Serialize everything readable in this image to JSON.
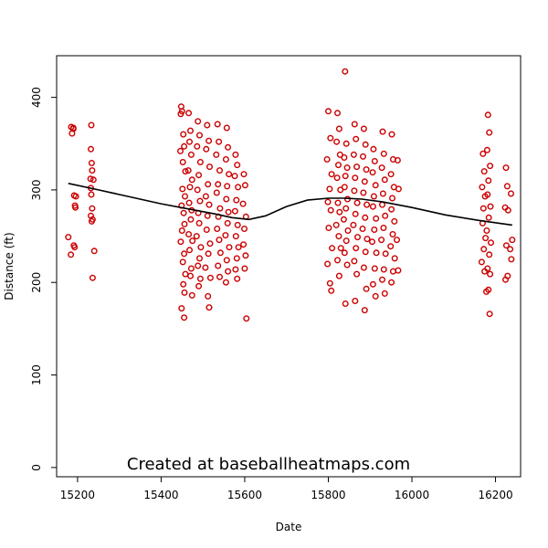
{
  "chart_data": {
    "type": "scatter",
    "title": "",
    "xlabel": "Date",
    "ylabel": "Distance (ft)",
    "watermark": "Created at baseballheatmaps.com",
    "xlim": [
      15150,
      16260
    ],
    "ylim": [
      -10,
      445
    ],
    "xticks": [
      15200,
      15400,
      15600,
      15800,
      16000,
      16200
    ],
    "yticks": [
      0,
      100,
      200,
      300,
      400
    ],
    "grid": false,
    "legend": "none",
    "colors": {
      "points": "#cc0000",
      "trend": "#000000",
      "axis": "#000000"
    },
    "points": [
      [
        15178,
        249
      ],
      [
        15185,
        368
      ],
      [
        15187,
        361
      ],
      [
        15190,
        366
      ],
      [
        15191,
        240
      ],
      [
        15192,
        294
      ],
      [
        15194,
        283
      ],
      [
        15184,
        230
      ],
      [
        15190,
        367
      ],
      [
        15193,
        238
      ],
      [
        15195,
        281
      ],
      [
        15196,
        293
      ],
      [
        15233,
        370
      ],
      [
        15232,
        344
      ],
      [
        15234,
        329
      ],
      [
        15235,
        321
      ],
      [
        15231,
        312
      ],
      [
        15232,
        302
      ],
      [
        15233,
        295
      ],
      [
        15235,
        280
      ],
      [
        15232,
        272
      ],
      [
        15236,
        268
      ],
      [
        15234,
        266
      ],
      [
        15240,
        234
      ],
      [
        15236,
        205
      ],
      [
        15238,
        311
      ],
      [
        15448,
        390
      ],
      [
        15450,
        385
      ],
      [
        15447,
        382
      ],
      [
        15453,
        360
      ],
      [
        15455,
        347
      ],
      [
        15446,
        342
      ],
      [
        15452,
        330
      ],
      [
        15458,
        320
      ],
      [
        15451,
        301
      ],
      [
        15457,
        293
      ],
      [
        15449,
        283
      ],
      [
        15454,
        275
      ],
      [
        15456,
        263
      ],
      [
        15450,
        256
      ],
      [
        15447,
        244
      ],
      [
        15455,
        231
      ],
      [
        15452,
        222
      ],
      [
        15458,
        209
      ],
      [
        15453,
        198
      ],
      [
        15456,
        189
      ],
      [
        15449,
        172
      ],
      [
        15455,
        162
      ],
      [
        15466,
        383
      ],
      [
        15470,
        364
      ],
      [
        15468,
        352
      ],
      [
        15472,
        338
      ],
      [
        15465,
        321
      ],
      [
        15474,
        311
      ],
      [
        15469,
        303
      ],
      [
        15467,
        286
      ],
      [
        15473,
        278
      ],
      [
        15471,
        268
      ],
      [
        15466,
        252
      ],
      [
        15475,
        245
      ],
      [
        15468,
        235
      ],
      [
        15472,
        215
      ],
      [
        15470,
        207
      ],
      [
        15474,
        186
      ],
      [
        15488,
        374
      ],
      [
        15492,
        359
      ],
      [
        15486,
        347
      ],
      [
        15494,
        330
      ],
      [
        15490,
        316
      ],
      [
        15487,
        300
      ],
      [
        15493,
        288
      ],
      [
        15489,
        275
      ],
      [
        15491,
        264
      ],
      [
        15485,
        250
      ],
      [
        15495,
        238
      ],
      [
        15492,
        226
      ],
      [
        15488,
        218
      ],
      [
        15494,
        204
      ],
      [
        15490,
        196
      ],
      [
        15510,
        370
      ],
      [
        15514,
        353
      ],
      [
        15508,
        344
      ],
      [
        15516,
        325
      ],
      [
        15512,
        306
      ],
      [
        15507,
        293
      ],
      [
        15515,
        284
      ],
      [
        15511,
        272
      ],
      [
        15509,
        257
      ],
      [
        15517,
        242
      ],
      [
        15513,
        231
      ],
      [
        15506,
        216
      ],
      [
        15518,
        205
      ],
      [
        15512,
        185
      ],
      [
        15515,
        173
      ],
      [
        15535,
        371
      ],
      [
        15538,
        352
      ],
      [
        15532,
        338
      ],
      [
        15540,
        321
      ],
      [
        15536,
        306
      ],
      [
        15533,
        297
      ],
      [
        15541,
        280
      ],
      [
        15537,
        271
      ],
      [
        15534,
        258
      ],
      [
        15539,
        246
      ],
      [
        15542,
        232
      ],
      [
        15536,
        218
      ],
      [
        15540,
        206
      ],
      [
        15557,
        367
      ],
      [
        15560,
        346
      ],
      [
        15555,
        333
      ],
      [
        15562,
        317
      ],
      [
        15558,
        304
      ],
      [
        15556,
        290
      ],
      [
        15561,
        276
      ],
      [
        15559,
        264
      ],
      [
        15554,
        251
      ],
      [
        15563,
        238
      ],
      [
        15557,
        224
      ],
      [
        15560,
        212
      ],
      [
        15555,
        200
      ],
      [
        15578,
        338
      ],
      [
        15582,
        327
      ],
      [
        15576,
        315
      ],
      [
        15584,
        303
      ],
      [
        15580,
        289
      ],
      [
        15577,
        277
      ],
      [
        15583,
        262
      ],
      [
        15579,
        250
      ],
      [
        15585,
        238
      ],
      [
        15581,
        226
      ],
      [
        15578,
        214
      ],
      [
        15582,
        204
      ],
      [
        15598,
        317
      ],
      [
        15601,
        305
      ],
      [
        15596,
        285
      ],
      [
        15603,
        271
      ],
      [
        15599,
        258
      ],
      [
        15597,
        241
      ],
      [
        15602,
        229
      ],
      [
        15600,
        215
      ],
      [
        15604,
        161
      ],
      [
        15800,
        385
      ],
      [
        15805,
        356
      ],
      [
        15797,
        333
      ],
      [
        15808,
        317
      ],
      [
        15803,
        301
      ],
      [
        15799,
        287
      ],
      [
        15806,
        278
      ],
      [
        15801,
        259
      ],
      [
        15809,
        237
      ],
      [
        15798,
        220
      ],
      [
        15804,
        199
      ],
      [
        15807,
        191
      ],
      [
        15822,
        383
      ],
      [
        15826,
        366
      ],
      [
        15820,
        352
      ],
      [
        15828,
        338
      ],
      [
        15824,
        327
      ],
      [
        15821,
        313
      ],
      [
        15829,
        300
      ],
      [
        15823,
        286
      ],
      [
        15827,
        276
      ],
      [
        15819,
        262
      ],
      [
        15825,
        250
      ],
      [
        15830,
        237
      ],
      [
        15822,
        224
      ],
      [
        15826,
        207
      ],
      [
        15840,
        428
      ],
      [
        15843,
        350
      ],
      [
        15838,
        335
      ],
      [
        15845,
        324
      ],
      [
        15841,
        315
      ],
      [
        15839,
        303
      ],
      [
        15846,
        290
      ],
      [
        15842,
        280
      ],
      [
        15837,
        268
      ],
      [
        15847,
        256
      ],
      [
        15843,
        245
      ],
      [
        15839,
        232
      ],
      [
        15845,
        219
      ],
      [
        15841,
        177
      ],
      [
        15863,
        371
      ],
      [
        15866,
        355
      ],
      [
        15861,
        338
      ],
      [
        15868,
        325
      ],
      [
        15864,
        313
      ],
      [
        15862,
        299
      ],
      [
        15869,
        286
      ],
      [
        15865,
        274
      ],
      [
        15860,
        262
      ],
      [
        15870,
        249
      ],
      [
        15866,
        237
      ],
      [
        15862,
        223
      ],
      [
        15868,
        209
      ],
      [
        15864,
        180
      ],
      [
        15885,
        366
      ],
      [
        15889,
        349
      ],
      [
        15883,
        336
      ],
      [
        15891,
        322
      ],
      [
        15887,
        309
      ],
      [
        15884,
        297
      ],
      [
        15892,
        284
      ],
      [
        15888,
        270
      ],
      [
        15882,
        258
      ],
      [
        15893,
        247
      ],
      [
        15889,
        233
      ],
      [
        15885,
        216
      ],
      [
        15891,
        193
      ],
      [
        15887,
        170
      ],
      [
        15908,
        344
      ],
      [
        15911,
        331
      ],
      [
        15906,
        319
      ],
      [
        15913,
        305
      ],
      [
        15909,
        293
      ],
      [
        15907,
        282
      ],
      [
        15914,
        269
      ],
      [
        15910,
        257
      ],
      [
        15905,
        244
      ],
      [
        15915,
        232
      ],
      [
        15911,
        215
      ],
      [
        15907,
        198
      ],
      [
        15913,
        185
      ],
      [
        15930,
        363
      ],
      [
        15933,
        339
      ],
      [
        15928,
        324
      ],
      [
        15935,
        311
      ],
      [
        15931,
        296
      ],
      [
        15929,
        284
      ],
      [
        15936,
        272
      ],
      [
        15932,
        259
      ],
      [
        15927,
        246
      ],
      [
        15937,
        231
      ],
      [
        15933,
        214
      ],
      [
        15929,
        203
      ],
      [
        15935,
        188
      ],
      [
        15952,
        360
      ],
      [
        15955,
        333
      ],
      [
        15950,
        317
      ],
      [
        15957,
        303
      ],
      [
        15953,
        291
      ],
      [
        15951,
        279
      ],
      [
        15958,
        266
      ],
      [
        15954,
        252
      ],
      [
        15949,
        239
      ],
      [
        15959,
        226
      ],
      [
        15955,
        212
      ],
      [
        15951,
        200
      ],
      [
        15966,
        332
      ],
      [
        15968,
        301
      ],
      [
        15964,
        246
      ],
      [
        15967,
        213
      ],
      [
        16170,
        339
      ],
      [
        16173,
        320
      ],
      [
        16168,
        303
      ],
      [
        16175,
        293
      ],
      [
        16171,
        280
      ],
      [
        16169,
        264
      ],
      [
        16176,
        248
      ],
      [
        16172,
        236
      ],
      [
        16167,
        222
      ],
      [
        16174,
        212
      ],
      [
        16178,
        190
      ],
      [
        16182,
        381
      ],
      [
        16185,
        362
      ],
      [
        16180,
        343
      ],
      [
        16187,
        326
      ],
      [
        16183,
        310
      ],
      [
        16181,
        295
      ],
      [
        16188,
        282
      ],
      [
        16184,
        270
      ],
      [
        16179,
        256
      ],
      [
        16189,
        243
      ],
      [
        16185,
        230
      ],
      [
        16181,
        215
      ],
      [
        16187,
        209
      ],
      [
        16183,
        192
      ],
      [
        16186,
        166
      ],
      [
        16225,
        324
      ],
      [
        16228,
        304
      ],
      [
        16223,
        281
      ],
      [
        16230,
        278
      ],
      [
        16226,
        240
      ],
      [
        16229,
        207
      ],
      [
        16224,
        203
      ],
      [
        16237,
        296
      ],
      [
        16240,
        246
      ],
      [
        16235,
        236
      ],
      [
        16238,
        225
      ]
    ],
    "trend": [
      [
        15178,
        307
      ],
      [
        15250,
        300
      ],
      [
        15320,
        293
      ],
      [
        15400,
        285
      ],
      [
        15470,
        279
      ],
      [
        15530,
        274
      ],
      [
        15570,
        270
      ],
      [
        15610,
        268
      ],
      [
        15650,
        272
      ],
      [
        15700,
        282
      ],
      [
        15750,
        289
      ],
      [
        15800,
        291
      ],
      [
        15840,
        291
      ],
      [
        15880,
        290
      ],
      [
        15930,
        287
      ],
      [
        16000,
        281
      ],
      [
        16080,
        273
      ],
      [
        16160,
        267
      ],
      [
        16240,
        262
      ]
    ]
  }
}
